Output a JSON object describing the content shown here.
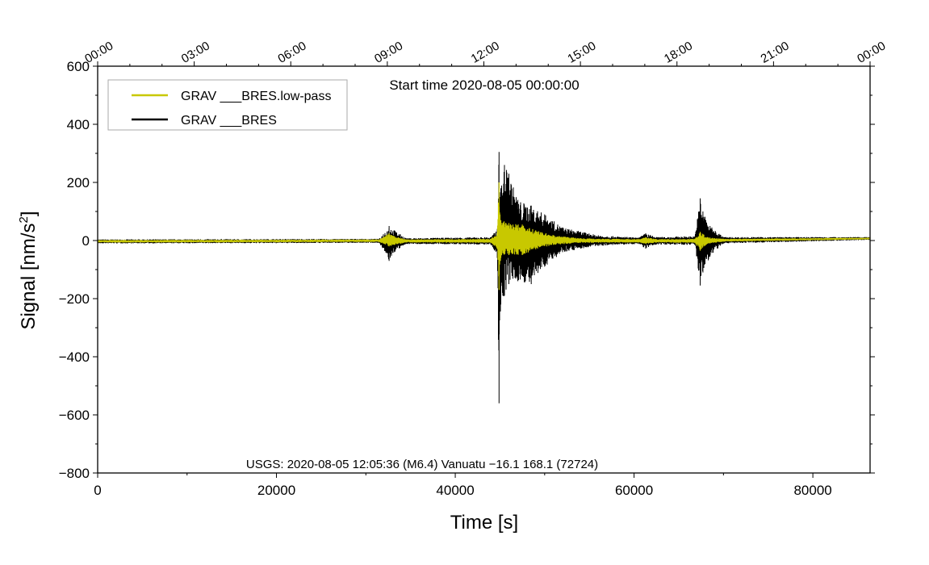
{
  "chart_data": {
    "type": "line",
    "title": "Start time 2020-08-05 00:00:00",
    "xlabel": "Time [s]",
    "ylabel": "Signal [nm/s2]",
    "ylabel_main": "Signal [nm/s",
    "ylabel_sup": "2",
    "ylabel_end": "]",
    "xlim": [
      0,
      86400
    ],
    "ylim": [
      -800,
      600
    ],
    "grid": false,
    "legend_position": "top-left",
    "x_ticks": [
      0,
      20000,
      40000,
      60000,
      80000
    ],
    "x_tick_labels": [
      "0",
      "20000",
      "40000",
      "60000",
      "80000"
    ],
    "y_ticks": [
      600,
      400,
      200,
      0,
      -200,
      -400,
      -600,
      -800
    ],
    "y_tick_labels": [
      "600",
      "400",
      "200",
      "0",
      "−200",
      "−400",
      "−600",
      "−800"
    ],
    "top_ticks_seconds": [
      0,
      10800,
      21600,
      32400,
      43200,
      54000,
      64800,
      75600,
      86400
    ],
    "top_tick_labels": [
      "00:00",
      "03:00",
      "06:00",
      "09:00",
      "12:00",
      "15:00",
      "18:00",
      "21:00",
      "00:00"
    ],
    "annotation": "USGS: 2020-08-05 12:05:36 (M6.4) Vanuatu −16.1 168.1 (72724)",
    "series": [
      {
        "name": "GRAV ___BRES",
        "color": "#000000",
        "envelope_time_s": [
          0,
          20000,
          31500,
          32600,
          33200,
          34500,
          44000,
          44700,
          44900,
          45100,
          45500,
          46000,
          47000,
          48500,
          50000,
          52000,
          56000,
          60500,
          61300,
          62500,
          66800,
          67400,
          67700,
          68500,
          70000,
          86400
        ],
        "envelope_max": [
          4,
          5,
          6,
          50,
          35,
          8,
          12,
          40,
          305,
          180,
          260,
          230,
          140,
          120,
          90,
          45,
          18,
          10,
          25,
          12,
          15,
          145,
          100,
          50,
          12,
          12
        ],
        "envelope_min": [
          -10,
          -9,
          -8,
          -70,
          -40,
          -12,
          -14,
          -60,
          -560,
          -220,
          -190,
          -150,
          -140,
          -150,
          -90,
          -40,
          -18,
          -12,
          -28,
          -14,
          -15,
          -155,
          -110,
          -55,
          -10,
          2
        ]
      },
      {
        "name": "GRAV ___BRES.low-pass",
        "color": "#c8c800",
        "envelope_time_s": [
          0,
          20000,
          31500,
          32600,
          33200,
          34500,
          44000,
          44700,
          44900,
          45100,
          46000,
          47500,
          49000,
          51000,
          54000,
          60500,
          61300,
          62500,
          66800,
          67400,
          67800,
          68500,
          70000,
          86400
        ],
        "envelope_max": [
          2,
          3,
          4,
          25,
          15,
          4,
          6,
          25,
          200,
          70,
          60,
          55,
          35,
          18,
          8,
          5,
          12,
          5,
          6,
          30,
          20,
          10,
          6,
          10
        ],
        "envelope_min": [
          -7,
          -6,
          -5,
          -20,
          -15,
          -7,
          -8,
          -30,
          -170,
          -60,
          -50,
          -50,
          -30,
          -15,
          -8,
          -7,
          -12,
          -7,
          -8,
          -35,
          -20,
          -10,
          -4,
          4
        ]
      }
    ]
  }
}
